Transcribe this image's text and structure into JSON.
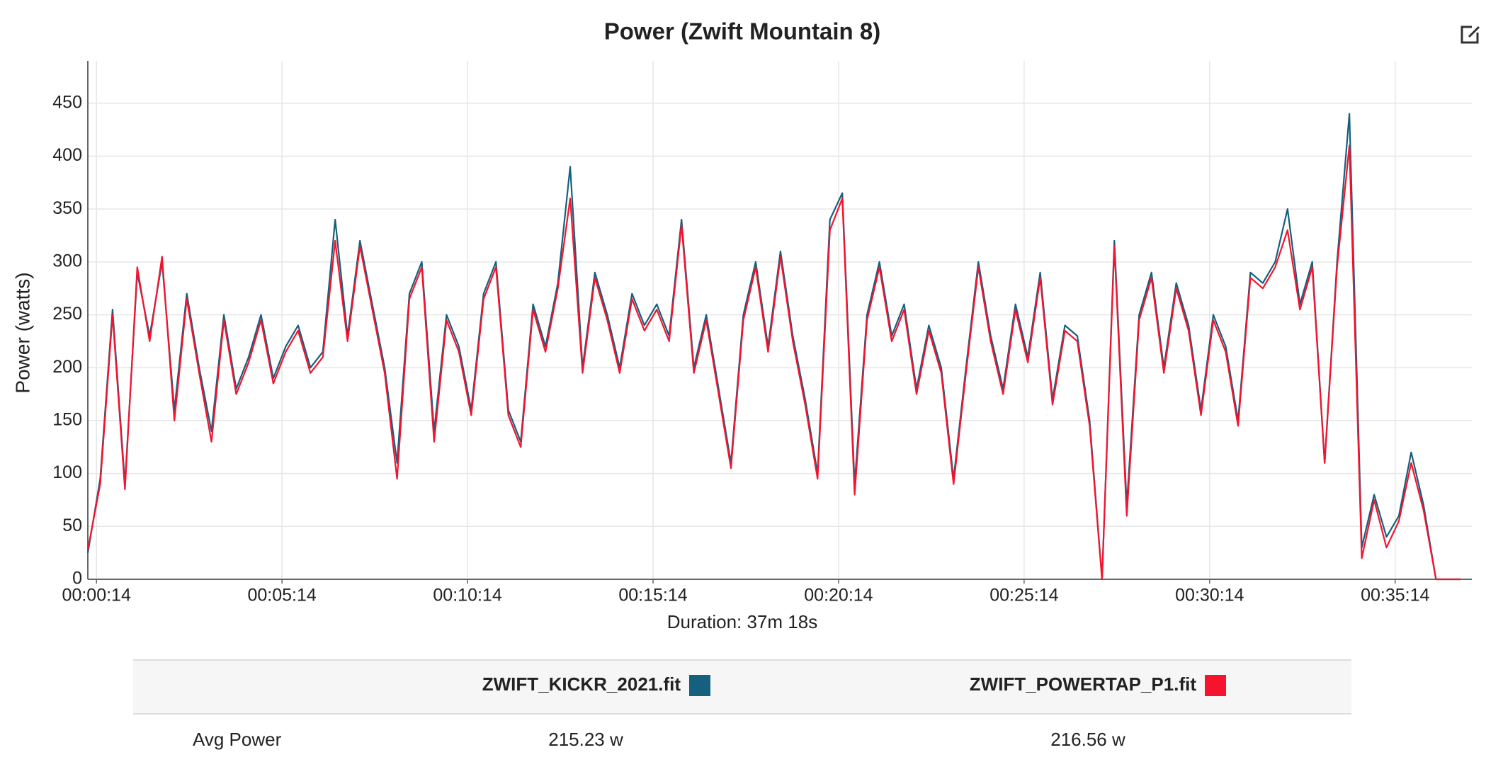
{
  "chart_data": {
    "type": "line",
    "title": "Power (Zwift Mountain 8)",
    "x_label": "Duration: 37m 18s",
    "y_label": "Power (watts)",
    "x": [
      0,
      20,
      40,
      60,
      80,
      100,
      120,
      140,
      160,
      180,
      200,
      220,
      240,
      260,
      280,
      300,
      320,
      340,
      360,
      380,
      400,
      420,
      440,
      460,
      480,
      500,
      520,
      540,
      560,
      580,
      600,
      620,
      640,
      660,
      680,
      700,
      720,
      740,
      760,
      780,
      800,
      820,
      840,
      860,
      880,
      900,
      920,
      940,
      960,
      980,
      1000,
      1020,
      1040,
      1060,
      1080,
      1100,
      1120,
      1140,
      1160,
      1180,
      1200,
      1220,
      1240,
      1260,
      1280,
      1300,
      1320,
      1340,
      1360,
      1380,
      1400,
      1420,
      1440,
      1460,
      1480,
      1500,
      1520,
      1540,
      1560,
      1580,
      1600,
      1620,
      1640,
      1660,
      1680,
      1700,
      1720,
      1740,
      1760,
      1780,
      1800,
      1820,
      1840,
      1860,
      1880,
      1900,
      1920,
      1940,
      1960,
      1980,
      2000,
      2020,
      2040,
      2060,
      2080,
      2100,
      2120,
      2140,
      2160,
      2180,
      2200,
      2220
    ],
    "series": [
      {
        "name": "ZWIFT_KICKR_2021.fit",
        "color": "#14607e",
        "values": [
          25,
          95,
          255,
          90,
          290,
          230,
          300,
          160,
          270,
          200,
          140,
          250,
          180,
          210,
          250,
          190,
          220,
          240,
          200,
          215,
          340,
          230,
          320,
          260,
          200,
          110,
          270,
          300,
          140,
          250,
          220,
          160,
          270,
          300,
          160,
          130,
          260,
          220,
          280,
          390,
          200,
          290,
          250,
          200,
          270,
          240,
          260,
          230,
          340,
          200,
          250,
          180,
          110,
          250,
          300,
          220,
          310,
          230,
          170,
          100,
          340,
          365,
          90,
          250,
          300,
          230,
          260,
          180,
          240,
          200,
          95,
          200,
          300,
          230,
          180,
          260,
          210,
          290,
          170,
          240,
          230,
          150,
          0,
          320,
          70,
          250,
          290,
          200,
          280,
          240,
          160,
          250,
          220,
          150,
          290,
          280,
          300,
          350,
          260,
          300,
          110,
          300,
          440,
          30,
          80,
          40,
          60,
          120,
          70,
          0,
          0,
          0
        ]
      },
      {
        "name": "ZWIFT_POWERTAP_P1.fit",
        "color": "#f5132e",
        "values": [
          28,
          90,
          250,
          85,
          295,
          225,
          305,
          150,
          265,
          195,
          130,
          245,
          175,
          205,
          245,
          185,
          215,
          235,
          195,
          210,
          320,
          225,
          315,
          255,
          195,
          95,
          265,
          295,
          130,
          245,
          215,
          155,
          265,
          295,
          155,
          125,
          255,
          215,
          275,
          360,
          195,
          285,
          245,
          195,
          265,
          235,
          255,
          225,
          335,
          195,
          245,
          175,
          105,
          245,
          295,
          215,
          305,
          225,
          165,
          95,
          330,
          360,
          80,
          245,
          295,
          225,
          255,
          175,
          235,
          195,
          90,
          195,
          295,
          225,
          175,
          255,
          205,
          285,
          165,
          235,
          225,
          145,
          0,
          315,
          60,
          245,
          285,
          195,
          275,
          235,
          155,
          245,
          215,
          145,
          285,
          275,
          295,
          330,
          255,
          295,
          110,
          295,
          410,
          20,
          75,
          30,
          55,
          110,
          65,
          0,
          0,
          0
        ]
      }
    ],
    "xlim": [
      0,
      2238
    ],
    "ylim": [
      0,
      490
    ],
    "xticks": [
      {
        "value": 14,
        "label": "00:00:14"
      },
      {
        "value": 314,
        "label": "00:05:14"
      },
      {
        "value": 614,
        "label": "00:10:14"
      },
      {
        "value": 914,
        "label": "00:15:14"
      },
      {
        "value": 1214,
        "label": "00:20:14"
      },
      {
        "value": 1514,
        "label": "00:25:14"
      },
      {
        "value": 1814,
        "label": "00:30:14"
      },
      {
        "value": 2114,
        "label": "00:35:14"
      }
    ],
    "yticks": [
      0,
      50,
      100,
      150,
      200,
      250,
      300,
      350,
      400,
      450
    ],
    "grid": true
  },
  "table": {
    "rows": [
      {
        "label": "Avg Power",
        "values": [
          "215.23 w",
          "216.56 w"
        ]
      }
    ]
  }
}
